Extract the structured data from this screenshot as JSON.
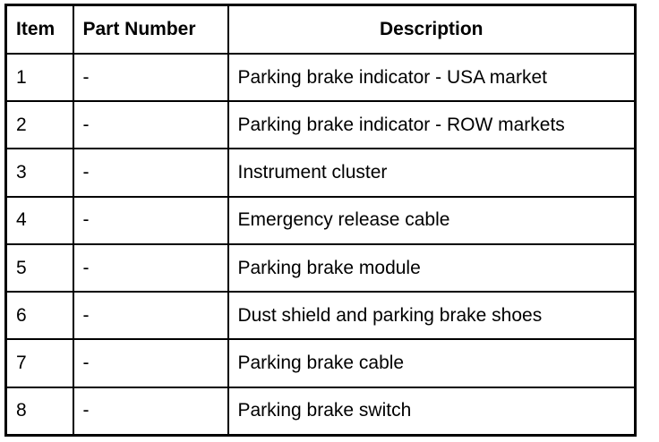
{
  "headers": {
    "item": "Item",
    "part_number": "Part Number",
    "description": "Description"
  },
  "rows": [
    {
      "item": "1",
      "part_number": "-",
      "description": "Parking brake indicator - USA market"
    },
    {
      "item": "2",
      "part_number": "-",
      "description": "Parking brake indicator - ROW markets"
    },
    {
      "item": "3",
      "part_number": "-",
      "description": "Instrument cluster"
    },
    {
      "item": "4",
      "part_number": "-",
      "description": "Emergency release cable"
    },
    {
      "item": "5",
      "part_number": "-",
      "description": "Parking brake module"
    },
    {
      "item": "6",
      "part_number": "-",
      "description": "Dust shield and parking brake shoes"
    },
    {
      "item": "7",
      "part_number": "-",
      "description": "Parking brake cable"
    },
    {
      "item": "8",
      "part_number": "-",
      "description": "Parking brake switch"
    }
  ]
}
